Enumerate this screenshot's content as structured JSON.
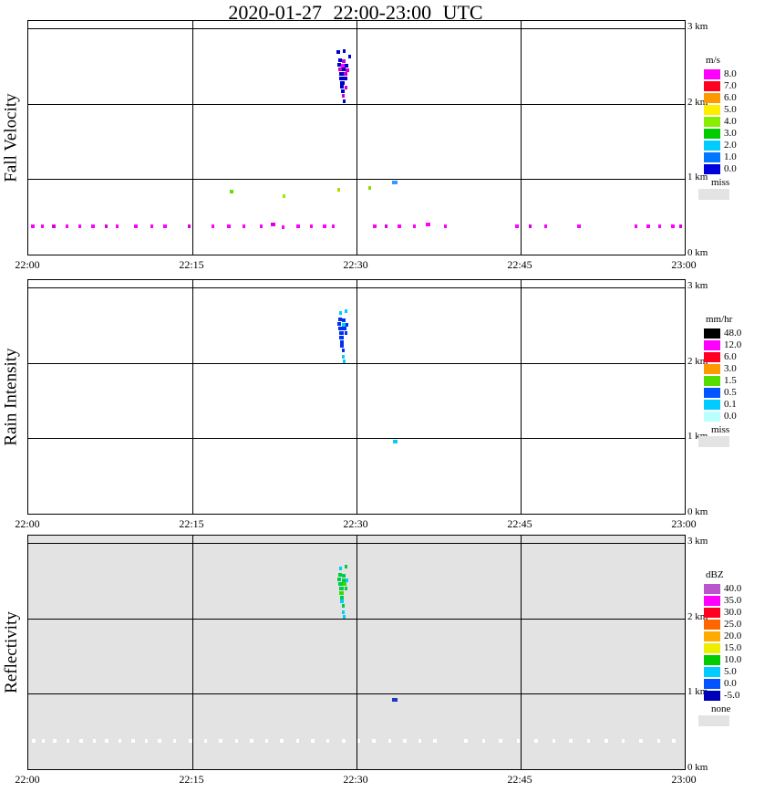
{
  "title": "2020-01-27  22:00-23:00 UTC",
  "chart_data": {
    "type": "heatmap",
    "title": "2020-01-27  22:00-23:00 UTC",
    "x_axis": {
      "tick_labels": [
        "22:00",
        "22:15",
        "22:30",
        "22:45",
        "23:00"
      ],
      "tick_minutes": [
        0,
        15,
        30,
        45,
        60
      ],
      "range_minutes": [
        0,
        60
      ]
    },
    "y_axis": {
      "tick_labels": [
        "3 km",
        "2 km",
        "1 km",
        "0 km"
      ],
      "tick_km": [
        3,
        2,
        1,
        0
      ],
      "range_km": [
        0,
        3
      ]
    },
    "panels": [
      {
        "name": "Fall Velocity",
        "units": "m/s",
        "background": "#ffffff",
        "legend": [
          {
            "label": "8.0",
            "color": "#ff00ff"
          },
          {
            "label": "7.0",
            "color": "#ff0022"
          },
          {
            "label": "6.0",
            "color": "#ff9900"
          },
          {
            "label": "5.0",
            "color": "#ffee00"
          },
          {
            "label": "4.0",
            "color": "#88ee00"
          },
          {
            "label": "3.0",
            "color": "#00cc00"
          },
          {
            "label": "2.0",
            "color": "#00ccff"
          },
          {
            "label": "1.0",
            "color": "#0077ff"
          },
          {
            "label": "0.0",
            "color": "#0000dd"
          },
          {
            "label": "miss",
            "color": "#e3e3e3",
            "wide": true
          }
        ],
        "points": [
          [
            28.3,
            2.68,
            "#0000cc",
            4
          ],
          [
            28.9,
            2.7,
            "#0000cc",
            3
          ],
          [
            29.4,
            2.63,
            "#0000cc",
            3
          ],
          [
            28.5,
            2.58,
            "#0000cc",
            4
          ],
          [
            28.8,
            2.56,
            "#cc00cc",
            4
          ],
          [
            28.4,
            2.52,
            "#0000cc",
            4
          ],
          [
            28.75,
            2.51,
            "#ff00ff",
            4
          ],
          [
            29.1,
            2.5,
            "#0000cc",
            4
          ],
          [
            28.5,
            2.46,
            "#cc00cc",
            4
          ],
          [
            28.85,
            2.45,
            "#0000cc",
            4
          ],
          [
            29.2,
            2.44,
            "#cc00cc",
            4
          ],
          [
            28.6,
            2.4,
            "#0000cc",
            5
          ],
          [
            29.0,
            2.39,
            "#cc00cc",
            4
          ],
          [
            28.6,
            2.34,
            "#0000cc",
            5
          ],
          [
            29.0,
            2.33,
            "#0000cc",
            4
          ],
          [
            28.7,
            2.28,
            "#0000cc",
            5
          ],
          [
            28.7,
            2.22,
            "#0000cc",
            4
          ],
          [
            29.05,
            2.21,
            "#cc00cc",
            3
          ],
          [
            28.75,
            2.16,
            "#0000cc",
            4
          ],
          [
            28.8,
            2.1,
            "#cc00cc",
            3
          ],
          [
            28.85,
            2.03,
            "#0000cc",
            3
          ],
          [
            18.6,
            0.84,
            "#66dd00",
            4
          ],
          [
            23.4,
            0.78,
            "#99ee00",
            3
          ],
          [
            28.4,
            0.86,
            "#aadd00",
            3
          ],
          [
            31.2,
            0.88,
            "#88dd00",
            3
          ],
          [
            33.5,
            0.95,
            "#3399ff",
            6
          ],
          [
            0.4,
            0.38,
            "#ff00ff",
            4
          ],
          [
            1.3,
            0.38,
            "#ff00ff",
            3
          ],
          [
            2.3,
            0.38,
            "#dd00dd",
            4
          ],
          [
            3.5,
            0.38,
            "#ff00ff",
            3
          ],
          [
            4.7,
            0.38,
            "#ff00ff",
            3
          ],
          [
            5.9,
            0.38,
            "#ff00ff",
            4
          ],
          [
            7.1,
            0.38,
            "#dd00dd",
            3
          ],
          [
            8.1,
            0.38,
            "#ff00ff",
            3
          ],
          [
            9.8,
            0.38,
            "#ff00ff",
            4
          ],
          [
            11.3,
            0.38,
            "#ff00ff",
            3
          ],
          [
            12.5,
            0.38,
            "#ff00ff",
            4
          ],
          [
            14.7,
            0.38,
            "#dd00dd",
            3
          ],
          [
            16.9,
            0.38,
            "#ff00ff",
            3
          ],
          [
            18.3,
            0.38,
            "#ff00ff",
            4
          ],
          [
            19.7,
            0.38,
            "#ff00ff",
            3
          ],
          [
            21.3,
            0.38,
            "#ff00ff",
            3
          ],
          [
            22.4,
            0.4,
            "#dd00dd",
            5
          ],
          [
            23.3,
            0.36,
            "#ff00ff",
            3
          ],
          [
            24.7,
            0.38,
            "#ff00ff",
            4
          ],
          [
            25.9,
            0.38,
            "#ff00ff",
            3
          ],
          [
            27.1,
            0.38,
            "#ff00ff",
            4
          ],
          [
            27.9,
            0.38,
            "#ff00ff",
            3
          ],
          [
            31.7,
            0.38,
            "#ff00ff",
            4
          ],
          [
            32.7,
            0.38,
            "#dd00dd",
            3
          ],
          [
            33.9,
            0.38,
            "#ff00ff",
            4
          ],
          [
            35.3,
            0.38,
            "#ff00ff",
            3
          ],
          [
            36.5,
            0.4,
            "#ff00ff",
            5
          ],
          [
            38.1,
            0.38,
            "#ff00ff",
            3
          ],
          [
            44.7,
            0.38,
            "#ff00ff",
            4
          ],
          [
            45.9,
            0.38,
            "#dd00dd",
            3
          ],
          [
            47.3,
            0.38,
            "#ff00ff",
            3
          ],
          [
            50.3,
            0.38,
            "#ff00ff",
            4
          ],
          [
            55.5,
            0.38,
            "#ff00ff",
            3
          ],
          [
            56.7,
            0.38,
            "#ff00ff",
            4
          ],
          [
            57.7,
            0.38,
            "#ff00ff",
            3
          ],
          [
            58.9,
            0.38,
            "#ff00ff",
            4
          ],
          [
            59.6,
            0.38,
            "#dd00dd",
            3
          ]
        ]
      },
      {
        "name": "Rain Intensity",
        "units": "mm/hr",
        "background": "#ffffff",
        "legend": [
          {
            "label": "48.0",
            "color": "#000000"
          },
          {
            "label": "12.0",
            "color": "#ff00ff"
          },
          {
            "label": "6.0",
            "color": "#ff0022"
          },
          {
            "label": "3.0",
            "color": "#ff9900"
          },
          {
            "label": "1.5",
            "color": "#55dd00"
          },
          {
            "label": "0.5",
            "color": "#0055ff"
          },
          {
            "label": "0.1",
            "color": "#00ccff"
          },
          {
            "label": "0.0",
            "color": "#bbffff"
          },
          {
            "label": "miss",
            "color": "#e3e3e3",
            "wide": true
          }
        ],
        "points": [
          [
            28.5,
            2.66,
            "#00ccff",
            3
          ],
          [
            29.0,
            2.68,
            "#00ccff",
            3
          ],
          [
            28.5,
            2.58,
            "#0033ee",
            4
          ],
          [
            28.85,
            2.56,
            "#0033ee",
            4
          ],
          [
            28.4,
            2.52,
            "#0033ee",
            4
          ],
          [
            28.8,
            2.51,
            "#00ccff",
            4
          ],
          [
            29.15,
            2.5,
            "#0033ee",
            3
          ],
          [
            28.5,
            2.46,
            "#0033ee",
            5
          ],
          [
            28.9,
            2.45,
            "#0033ee",
            4
          ],
          [
            28.6,
            2.4,
            "#0033ee",
            5
          ],
          [
            29.0,
            2.39,
            "#0033ee",
            3
          ],
          [
            28.6,
            2.34,
            "#0033ee",
            5
          ],
          [
            28.7,
            2.28,
            "#0033ee",
            4
          ],
          [
            28.7,
            2.22,
            "#0033ee",
            4
          ],
          [
            28.75,
            2.16,
            "#0033ee",
            3
          ],
          [
            28.8,
            2.08,
            "#00ccff",
            3
          ],
          [
            28.85,
            2.02,
            "#00ccff",
            3
          ],
          [
            33.5,
            0.95,
            "#00ccff",
            5
          ]
        ]
      },
      {
        "name": "Reflectivity",
        "units": "dBZ",
        "background": "#e3e3e3",
        "legend": [
          {
            "label": "40.0",
            "color": "#bb55cc"
          },
          {
            "label": "35.0",
            "color": "#ff00ff"
          },
          {
            "label": "30.0",
            "color": "#ff0022"
          },
          {
            "label": "25.0",
            "color": "#ff6600"
          },
          {
            "label": "20.0",
            "color": "#ffaa00"
          },
          {
            "label": "15.0",
            "color": "#eeee00"
          },
          {
            "label": "10.0",
            "color": "#00cc00"
          },
          {
            "label": "5.0",
            "color": "#00ccff"
          },
          {
            "label": "0.0",
            "color": "#0055ff"
          },
          {
            "label": "-5.0",
            "color": "#0000bb"
          },
          {
            "label": "none",
            "color": "#e3e3e3",
            "wide": true
          }
        ],
        "points": [
          [
            28.5,
            2.66,
            "#00ccff",
            3
          ],
          [
            29.0,
            2.68,
            "#00cc44",
            3
          ],
          [
            28.5,
            2.58,
            "#00cc44",
            4
          ],
          [
            28.85,
            2.56,
            "#00cc44",
            4
          ],
          [
            28.4,
            2.52,
            "#00cc44",
            4
          ],
          [
            28.8,
            2.51,
            "#00cc44",
            4
          ],
          [
            29.15,
            2.5,
            "#00ccff",
            3
          ],
          [
            28.5,
            2.46,
            "#00cc44",
            5
          ],
          [
            28.9,
            2.45,
            "#33dd00",
            4
          ],
          [
            28.6,
            2.4,
            "#00cc44",
            5
          ],
          [
            29.0,
            2.39,
            "#00cc44",
            3
          ],
          [
            28.6,
            2.34,
            "#33dd00",
            5
          ],
          [
            28.7,
            2.28,
            "#00cc44",
            4
          ],
          [
            28.7,
            2.22,
            "#00ccff",
            4
          ],
          [
            28.75,
            2.16,
            "#00cc44",
            3
          ],
          [
            28.8,
            2.08,
            "#00ccff",
            3
          ],
          [
            28.85,
            2.02,
            "#00ccff",
            3
          ],
          [
            33.5,
            0.92,
            "#2233cc",
            6
          ],
          [
            0.5,
            0.38,
            "#ffffff",
            4
          ],
          [
            1.4,
            0.38,
            "#ffffff",
            3
          ],
          [
            2.4,
            0.38,
            "#ffffff",
            4
          ],
          [
            3.6,
            0.38,
            "#ffffff",
            3
          ],
          [
            4.8,
            0.38,
            "#ffffff",
            4
          ],
          [
            6.0,
            0.38,
            "#ffffff",
            3
          ],
          [
            7.2,
            0.38,
            "#ffffff",
            4
          ],
          [
            8.4,
            0.38,
            "#ffffff",
            3
          ],
          [
            9.6,
            0.38,
            "#ffffff",
            4
          ],
          [
            10.8,
            0.38,
            "#ffffff",
            3
          ],
          [
            12.0,
            0.38,
            "#ffffff",
            4
          ],
          [
            13.4,
            0.38,
            "#ffffff",
            3
          ],
          [
            14.8,
            0.38,
            "#ffffff",
            4
          ],
          [
            16.2,
            0.38,
            "#ffffff",
            3
          ],
          [
            17.6,
            0.38,
            "#ffffff",
            4
          ],
          [
            19.0,
            0.38,
            "#ffffff",
            3
          ],
          [
            20.4,
            0.38,
            "#ffffff",
            4
          ],
          [
            21.8,
            0.38,
            "#ffffff",
            3
          ],
          [
            23.2,
            0.38,
            "#ffffff",
            4
          ],
          [
            24.6,
            0.38,
            "#ffffff",
            3
          ],
          [
            26.0,
            0.38,
            "#ffffff",
            4
          ],
          [
            27.4,
            0.38,
            "#ffffff",
            3
          ],
          [
            28.8,
            0.38,
            "#ffffff",
            4
          ],
          [
            30.2,
            0.38,
            "#ffffff",
            3
          ],
          [
            31.6,
            0.38,
            "#ffffff",
            4
          ],
          [
            33.0,
            0.38,
            "#ffffff",
            3
          ],
          [
            34.4,
            0.38,
            "#ffffff",
            4
          ],
          [
            35.8,
            0.38,
            "#ffffff",
            3
          ],
          [
            37.2,
            0.38,
            "#ffffff",
            4
          ],
          [
            40.0,
            0.38,
            "#ffffff",
            4
          ],
          [
            41.6,
            0.38,
            "#ffffff",
            3
          ],
          [
            43.2,
            0.38,
            "#ffffff",
            4
          ],
          [
            44.8,
            0.38,
            "#ffffff",
            3
          ],
          [
            46.4,
            0.38,
            "#ffffff",
            4
          ],
          [
            48.0,
            0.38,
            "#ffffff",
            3
          ],
          [
            49.6,
            0.38,
            "#ffffff",
            4
          ],
          [
            51.2,
            0.38,
            "#ffffff",
            3
          ],
          [
            52.8,
            0.38,
            "#ffffff",
            4
          ],
          [
            54.4,
            0.38,
            "#ffffff",
            3
          ],
          [
            56.0,
            0.38,
            "#ffffff",
            4
          ],
          [
            57.6,
            0.38,
            "#ffffff",
            3
          ],
          [
            59.0,
            0.38,
            "#ffffff",
            4
          ]
        ]
      }
    ]
  }
}
